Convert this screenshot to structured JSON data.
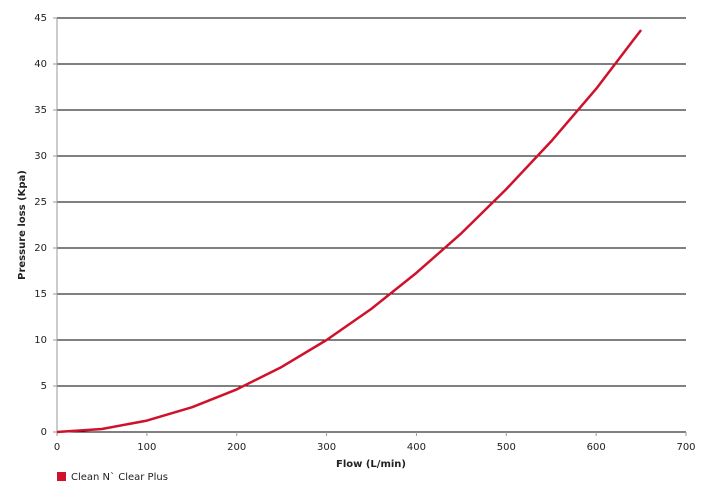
{
  "chart_data": {
    "type": "line",
    "x_label": "Flow (L/min)",
    "y_label": "Pressure loss (Kpa)",
    "x": [
      0,
      50,
      100,
      150,
      200,
      250,
      300,
      350,
      400,
      450,
      500,
      550,
      600,
      650
    ],
    "series": [
      {
        "name": "Clean N` Clear Plus",
        "color": "#d0112b",
        "values": [
          0,
          0.33,
          1.24,
          2.68,
          4.63,
          7.07,
          10,
          13.4,
          17.3,
          21.6,
          26.4,
          31.6,
          37.3,
          43.7
        ]
      }
    ],
    "xlim": [
      0,
      700
    ],
    "xticks": [
      0,
      100,
      200,
      300,
      400,
      500,
      600,
      700
    ],
    "ylim": [
      0,
      45
    ],
    "yticks": [
      0,
      5,
      10,
      15,
      20,
      25,
      30,
      35,
      40,
      45
    ],
    "grid": true,
    "legend": "bottom-left"
  }
}
